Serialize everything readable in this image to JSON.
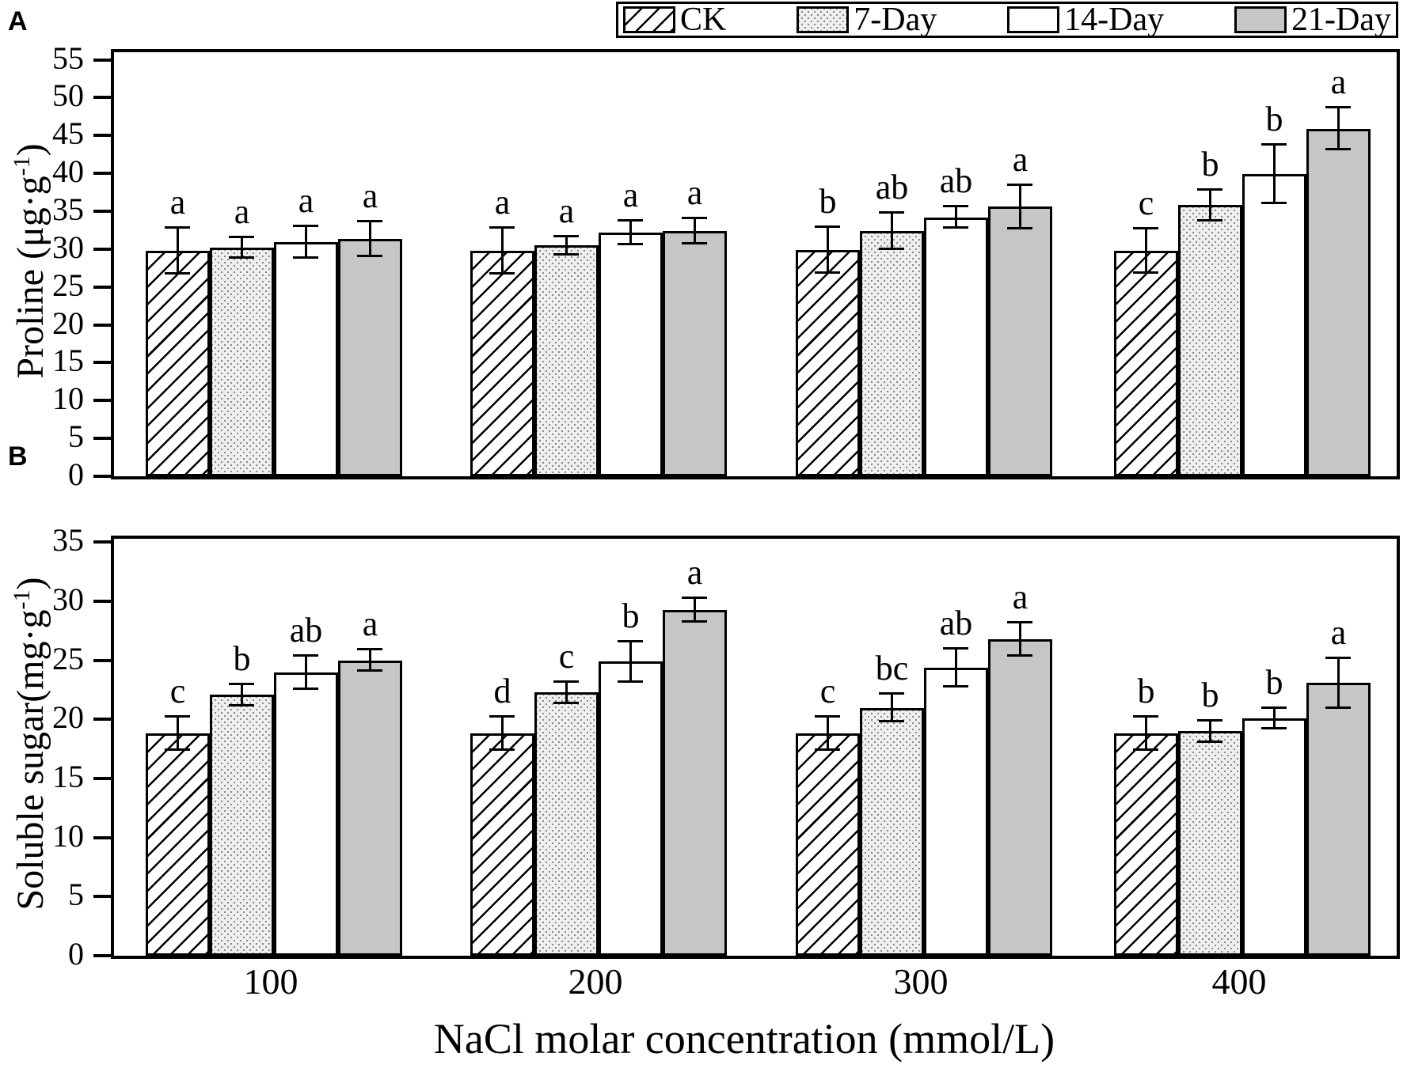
{
  "figure": {
    "xlabel": "NaCl molar concentration (mmol/L)",
    "colors": {
      "bar_gray": "#c6c6c6",
      "stipple_dot": "#8a8a8a",
      "stipple_bg": "#efefef",
      "line_black": "#000000",
      "background": "#ffffff"
    }
  },
  "legend": {
    "items": [
      {
        "label": "CK",
        "pattern": "hatch"
      },
      {
        "label": "7-Day",
        "pattern": "stipple"
      },
      {
        "label": "14-Day",
        "pattern": "white"
      },
      {
        "label": "21-Day",
        "pattern": "gray"
      }
    ]
  },
  "chart_data": [
    {
      "panel": "A",
      "type": "bar",
      "ylabel": "Proline (μg·g⁻¹)",
      "ylabel_main": "Proline (μg·g",
      "ylabel_sup": "-1",
      "ylabel_close": ")",
      "xlabel": "NaCl molar concentration (mmol/L)",
      "ylim": [
        0,
        55
      ],
      "yticks": [
        0,
        5,
        10,
        15,
        20,
        25,
        30,
        35,
        40,
        45,
        50,
        55
      ],
      "grid": false,
      "legend_position": "top-right",
      "categories": [
        "100",
        "200",
        "300",
        "400"
      ],
      "series": [
        {
          "name": "CK",
          "pattern": "hatch",
          "values": [
            29.8,
            29.8,
            29.9,
            29.8
          ],
          "errors": [
            3.0,
            3.0,
            3.0,
            2.9
          ],
          "letters": [
            "a",
            "a",
            "b",
            "c"
          ]
        },
        {
          "name": "7-Day",
          "pattern": "stipple",
          "values": [
            30.2,
            30.5,
            32.4,
            35.8
          ],
          "errors": [
            1.4,
            1.2,
            2.4,
            2.0
          ],
          "letters": [
            "a",
            "a",
            "ab",
            "b"
          ]
        },
        {
          "name": "14-Day",
          "pattern": "white",
          "values": [
            30.9,
            32.2,
            34.2,
            39.9
          ],
          "errors": [
            2.1,
            1.6,
            1.4,
            3.9
          ],
          "letters": [
            "a",
            "a",
            "ab",
            "b"
          ]
        },
        {
          "name": "21-Day",
          "pattern": "gray",
          "values": [
            31.3,
            32.4,
            35.6,
            45.9
          ],
          "errors": [
            2.3,
            1.7,
            2.9,
            2.8
          ],
          "letters": [
            "a",
            "a",
            "a",
            "a"
          ]
        }
      ]
    },
    {
      "panel": "B",
      "type": "bar",
      "ylabel": "Soluble sugar(mg·g⁻¹)",
      "ylabel_main": "Soluble sugar(mg·g",
      "ylabel_sup": "-1",
      "ylabel_close": ")",
      "xlabel": "NaCl molar concentration (mmol/L)",
      "ylim": [
        0,
        35
      ],
      "yticks": [
        0,
        5,
        10,
        15,
        20,
        25,
        30,
        35
      ],
      "grid": false,
      "legend_position": "top-right",
      "categories": [
        "100",
        "200",
        "300",
        "400"
      ],
      "series": [
        {
          "name": "CK",
          "pattern": "hatch",
          "values": [
            18.8,
            18.8,
            18.8,
            18.8
          ],
          "errors": [
            1.4,
            1.4,
            1.4,
            1.4
          ],
          "letters": [
            "c",
            "d",
            "c",
            "b"
          ]
        },
        {
          "name": "7-Day",
          "pattern": "stipple",
          "values": [
            22.1,
            22.3,
            21.0,
            19.0
          ],
          "errors": [
            0.9,
            0.9,
            1.2,
            0.9
          ],
          "letters": [
            "b",
            "c",
            "bc",
            "b"
          ]
        },
        {
          "name": "14-Day",
          "pattern": "white",
          "values": [
            24.0,
            24.9,
            24.4,
            20.1
          ],
          "errors": [
            1.4,
            1.7,
            1.6,
            0.9
          ],
          "letters": [
            "ab",
            "b",
            "ab",
            "b"
          ]
        },
        {
          "name": "21-Day",
          "pattern": "gray",
          "values": [
            25.0,
            29.3,
            26.8,
            23.1
          ],
          "errors": [
            0.9,
            1.0,
            1.4,
            2.1
          ],
          "letters": [
            "a",
            "a",
            "a",
            "a"
          ]
        }
      ]
    }
  ]
}
